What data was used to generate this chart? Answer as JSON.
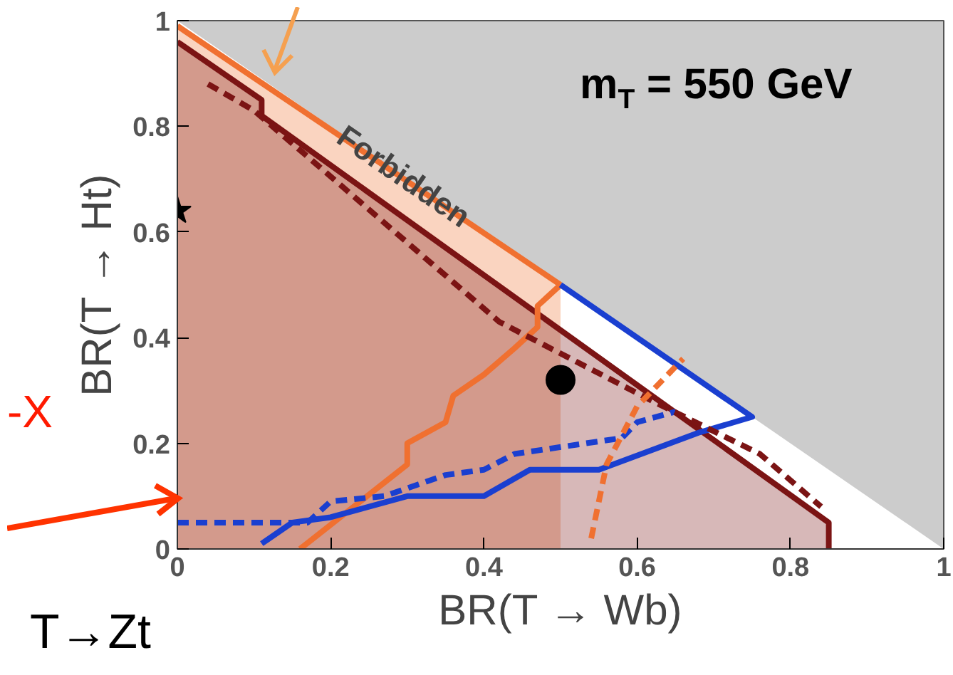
{
  "chart_data": {
    "type": "line",
    "xlabel": "BR(T → Wb)",
    "ylabel": "BR(T → Ht)",
    "xlim": [
      0,
      1
    ],
    "ylim": [
      0,
      1
    ],
    "xticks": [
      0,
      0.2,
      0.4,
      0.6,
      0.8,
      1
    ],
    "yticks": [
      0,
      0.2,
      0.4,
      0.6,
      0.8,
      1
    ],
    "grid": false,
    "annotations": [
      "m$_{T}$ = 550 GeV",
      "Forbidden",
      "-X",
      "T→Zt"
    ],
    "series": [
      {
        "type": "area",
        "color": "#ffffff",
        "x": [
          0,
          1
        ],
        "values": [
          1,
          0
        ]
      },
      {
        "type": "area",
        "color": "#f07030",
        "x": [
          0,
          0.5
        ],
        "values": [
          0.99,
          0.5
        ]
      },
      {
        "type": "area",
        "color": "#7b1414",
        "x": [
          0,
          0.11,
          0.11,
          0.85,
          0.85
        ],
        "values": [
          0.96,
          0.85,
          0.82,
          0.05,
          0
        ]
      },
      {
        "color": "#f07030",
        "x": [
          0.16,
          0.3,
          0.3,
          0.35,
          0.36,
          0.4,
          0.44,
          0.47,
          0.47,
          0.5
        ],
        "values": [
          0,
          0.16,
          0.2,
          0.24,
          0.29,
          0.33,
          0.38,
          0.42,
          0.46,
          0.5
        ]
      },
      {
        "color": "#1a3fd0",
        "x": [
          0.11,
          0.15,
          0.2,
          0.3,
          0.4,
          0.46,
          0.55,
          0.68,
          0.75,
          0.5
        ],
        "values": [
          0.01,
          0.05,
          0.06,
          0.1,
          0.1,
          0.15,
          0.15,
          0.22,
          0.25,
          0.5
        ]
      },
      {
        "color": "#1a3fd0",
        "line_style": "dashed",
        "x": [
          0,
          0.17,
          0.2,
          0.27,
          0.35,
          0.4,
          0.44,
          0.58,
          0.6,
          0.65
        ],
        "values": [
          0.05,
          0.05,
          0.09,
          0.1,
          0.14,
          0.15,
          0.18,
          0.21,
          0.24,
          0.26
        ]
      },
      {
        "color": "#7b1414",
        "line_style": "dashed",
        "x": [
          0.04,
          0.1,
          0.42,
          0.62,
          0.76,
          0.84
        ],
        "values": [
          0.88,
          0.83,
          0.43,
          0.28,
          0.18,
          0.08
        ]
      },
      {
        "color": "#f07030",
        "line_style": "dashed",
        "x": [
          0.54,
          0.56,
          0.6,
          0.64,
          0.66
        ],
        "values": [
          0.02,
          0.16,
          0.27,
          0.33,
          0.36
        ]
      },
      {
        "type": "scatter",
        "color": "#000000",
        "marker": "circle",
        "x": [
          0.5
        ],
        "values": [
          0.32
        ]
      },
      {
        "type": "scatter",
        "color": "#000000",
        "marker": "star",
        "x": [
          0
        ],
        "values": [
          0.64
        ]
      }
    ]
  }
}
